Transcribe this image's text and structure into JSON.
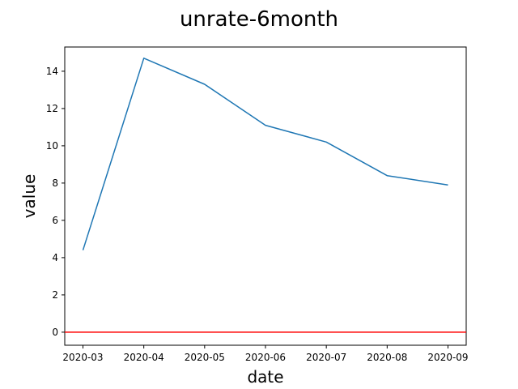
{
  "chart_data": {
    "type": "line",
    "title": "unrate-6month",
    "xlabel": "date",
    "ylabel": "value",
    "x": [
      "2020-03",
      "2020-04",
      "2020-05",
      "2020-06",
      "2020-07",
      "2020-08",
      "2020-09"
    ],
    "series": [
      {
        "values": [
          4.4,
          14.7,
          13.3,
          11.1,
          10.2,
          8.4,
          7.9
        ],
        "color": "#1f77b4"
      }
    ],
    "reference_line": {
      "y": 0,
      "color": "#ff0000"
    },
    "yticks": [
      0,
      2,
      4,
      6,
      8,
      10,
      12,
      14
    ],
    "ylim": [
      -0.7,
      15.3
    ],
    "grid": false,
    "legend": "none"
  }
}
